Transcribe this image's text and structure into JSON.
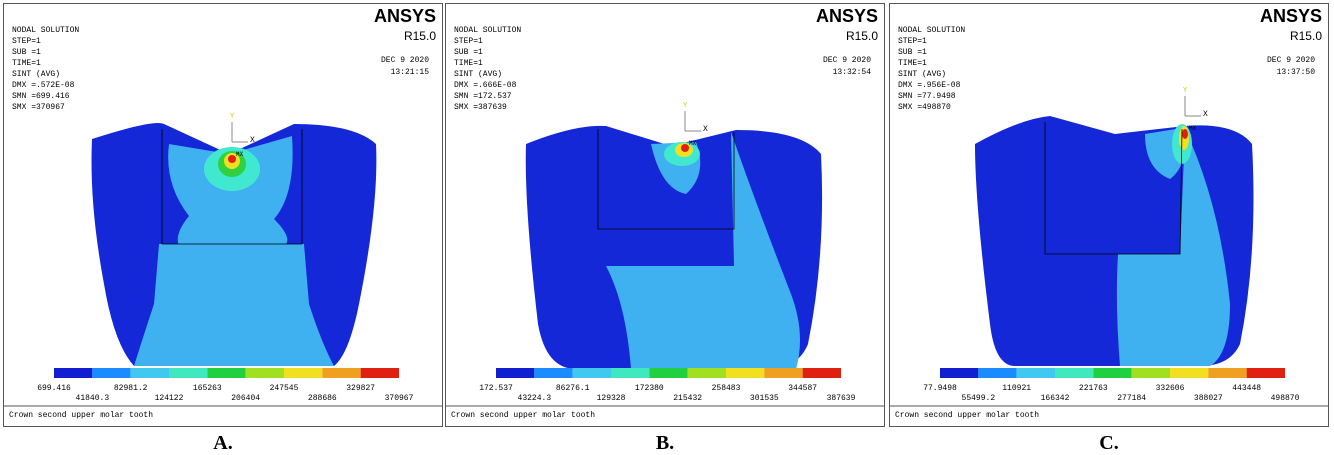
{
  "panels": [
    {
      "label": "A.",
      "header": [
        "NODAL SOLUTION",
        "STEP=1",
        "SUB =1",
        "TIME=1",
        "SINT    (AVG)",
        "DMX =.572E-08",
        "SMN =699.416",
        "SMX =370967"
      ],
      "brand": "ANSYS",
      "version": "R15.0",
      "date": "DEC  9 2020",
      "time": "13:21:15",
      "axis_y": "Y",
      "axis_x": "X",
      "max_marker": "MX",
      "legend": [
        "699.416",
        "41840.3",
        "82981.2",
        "124122",
        "165263",
        "206404",
        "247545",
        "288686",
        "329827",
        "370967"
      ],
      "caption": "Crown second upper molar tooth"
    },
    {
      "label": "B.",
      "header": [
        "NODAL SOLUTION",
        "STEP=1",
        "SUB =1",
        "TIME=1",
        "SINT    (AVG)",
        "DMX =.666E-08",
        "SMN =172.537",
        "SMX =387639"
      ],
      "brand": "ANSYS",
      "version": "R15.0",
      "date": "DEC  9 2020",
      "time": "13:32:54",
      "axis_y": "Y",
      "axis_x": "X",
      "max_marker": "MX",
      "legend": [
        "172.537",
        "43224.3",
        "86276.1",
        "129328",
        "172380",
        "215432",
        "258483",
        "301535",
        "344587",
        "387639"
      ],
      "caption": "Crown second upper molar tooth"
    },
    {
      "label": "C.",
      "header": [
        "NODAL SOLUTION",
        "STEP=1",
        "SUB =1",
        "TIME=1",
        "SINT    (AVG)",
        "DMX =.956E-08",
        "SMN =77.9498",
        "SMX =498870"
      ],
      "brand": "ANSYS",
      "version": "R15.0",
      "date": "DEC  9 2020",
      "time": "13:37:50",
      "axis_y": "Y",
      "axis_x": "X",
      "max_marker": "MX",
      "legend": [
        "77.9498",
        "55499.2",
        "110921",
        "166342",
        "221763",
        "277184",
        "332606",
        "388027",
        "443448",
        "498870"
      ],
      "caption": "Crown second upper molar tooth"
    }
  ]
}
